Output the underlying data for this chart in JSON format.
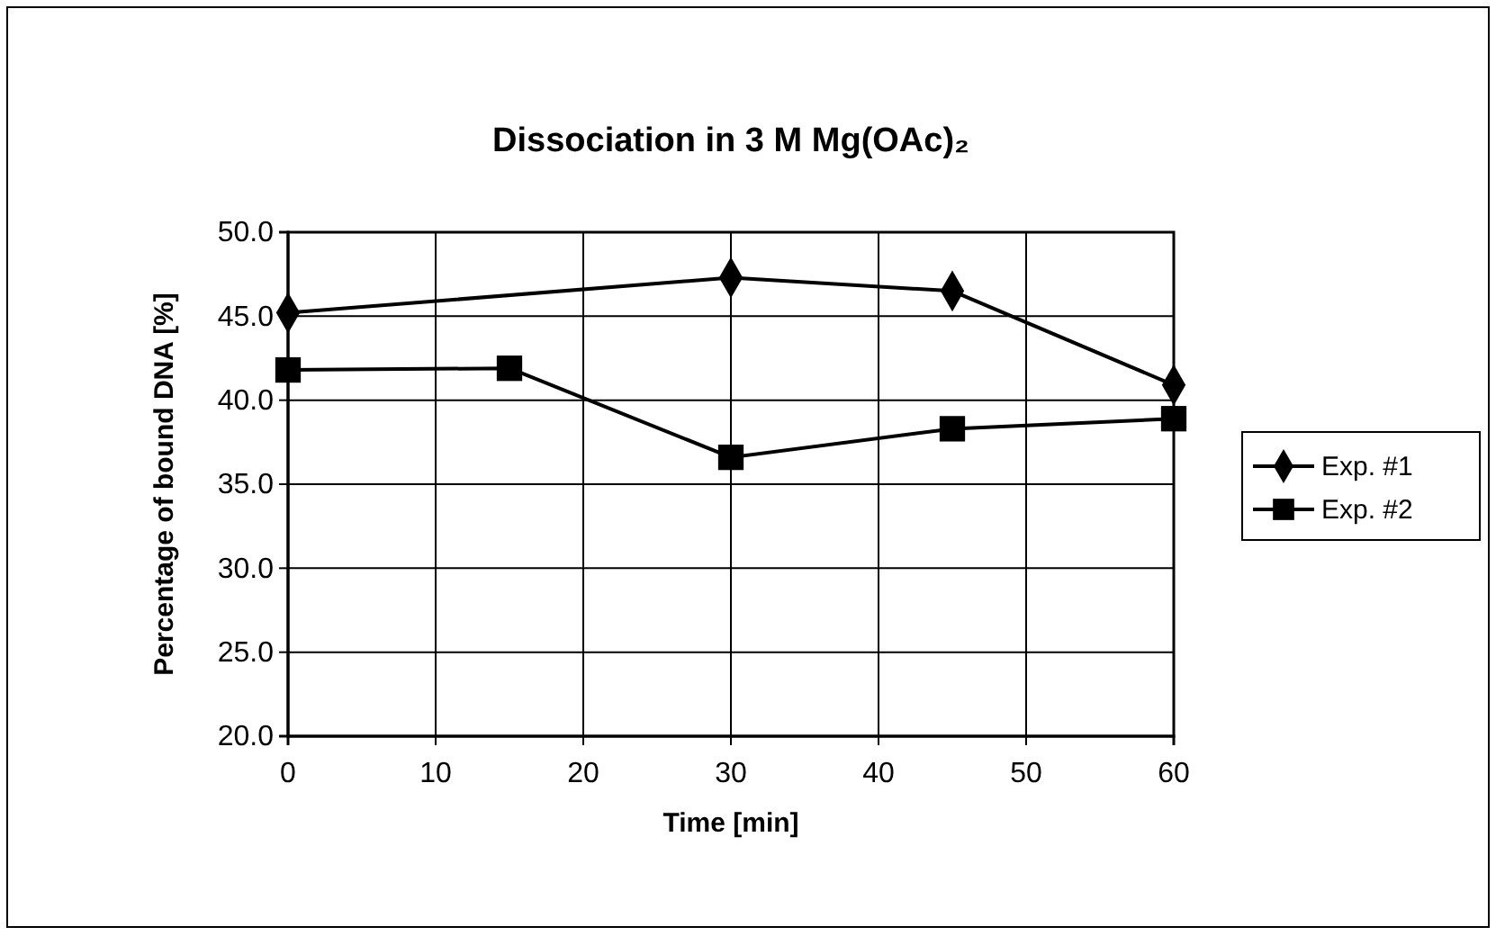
{
  "chart_data": {
    "type": "line",
    "title": "Dissociation in 3 M Mg(OAc)₂",
    "xlabel": "Time [min]",
    "ylabel": "Percentage of bound DNA [%]",
    "xlim": [
      0,
      60
    ],
    "xticks": [
      0,
      10,
      20,
      30,
      40,
      50,
      60
    ],
    "ylim": [
      20,
      50
    ],
    "yticks": [
      {
        "value": 20,
        "label": "20.0"
      },
      {
        "value": 25,
        "label": "25.0"
      },
      {
        "value": 30,
        "label": "30.0"
      },
      {
        "value": 35,
        "label": "35.0"
      },
      {
        "value": 40,
        "label": "40.0"
      },
      {
        "value": 45,
        "label": "45.0"
      },
      {
        "value": 50,
        "label": "50.0"
      }
    ],
    "grid": true,
    "legend": "right",
    "line_style": "solid",
    "series": [
      {
        "name": "Exp. #1",
        "color": "#000000",
        "marker": "diamond",
        "x": [
          0,
          30,
          45,
          60
        ],
        "values": [
          45.2,
          47.3,
          46.5,
          40.9
        ]
      },
      {
        "name": "Exp. #2",
        "color": "#000000",
        "marker": "square",
        "x": [
          0,
          15,
          30,
          45,
          60
        ],
        "values": [
          41.8,
          41.9,
          36.6,
          38.3,
          38.9
        ]
      }
    ]
  }
}
